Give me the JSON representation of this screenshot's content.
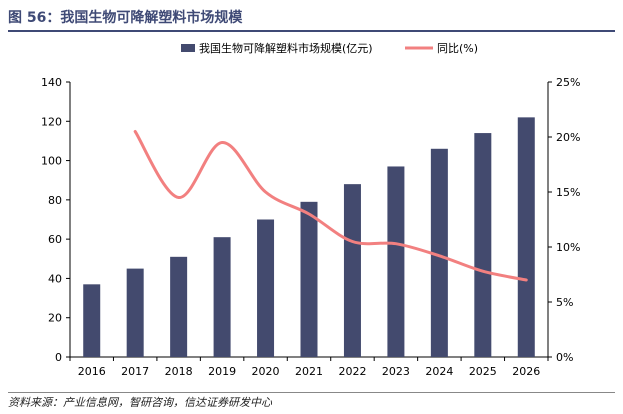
{
  "figure": {
    "title": "图 56：我国生物可降解塑料市场规模",
    "source": "资料来源：产业信息网，智研咨询，信达证券研发中心"
  },
  "colors": {
    "bar": "#434a6e",
    "line": "#f28080",
    "title": "#3f4a76"
  },
  "chart_data": {
    "type": "bar",
    "categories": [
      "2016",
      "2017",
      "2018",
      "2019",
      "2020",
      "2021",
      "2022",
      "2023",
      "2024",
      "2025",
      "2026"
    ],
    "series": [
      {
        "name": "我国生物可降解塑料市场规模(亿元)",
        "type": "bar",
        "axis": "left",
        "values": [
          37,
          45,
          51,
          61,
          70,
          79,
          88,
          97,
          106,
          114,
          122
        ]
      },
      {
        "name": "同比(%)",
        "type": "line",
        "axis": "right",
        "values": [
          null,
          20.5,
          14.5,
          19.5,
          15.0,
          13.0,
          10.5,
          10.3,
          9.2,
          7.8,
          7.0
        ]
      }
    ],
    "ylim_left": [
      0,
      140
    ],
    "yticks_left": [
      "0",
      "20",
      "40",
      "60",
      "80",
      "100",
      "120",
      "140"
    ],
    "ylim_right": [
      0,
      25
    ],
    "yticks_right": [
      "0%",
      "5%",
      "10%",
      "15%",
      "20%",
      "25%"
    ],
    "legend_position": "top",
    "grid": false
  }
}
